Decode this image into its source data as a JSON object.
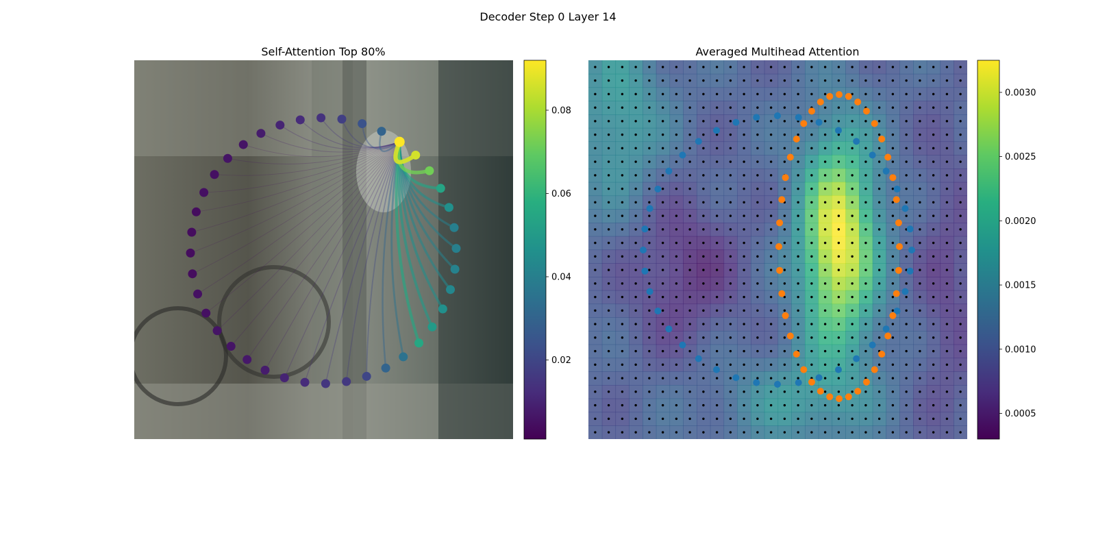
{
  "figure": {
    "suptitle": "Decoder Step 0 Layer 14"
  },
  "chart_data": [
    {
      "type": "scatter",
      "title": "Self-Attention Top 80%",
      "description_of_marks": "points on an ellipse with attention lines from a query point; color = attention weight",
      "colormap": "viridis",
      "colorbar": {
        "range": [
          0.001,
          0.092
        ],
        "ticks": [
          0.02,
          0.04,
          0.06,
          0.08
        ],
        "tick_labels": [
          "0.02",
          "0.04",
          "0.06",
          "0.08"
        ]
      },
      "query_index": 0,
      "series": [
        {
          "points_count": 40,
          "weights": [
            0.092,
            0.086,
            0.072,
            0.054,
            0.046,
            0.04,
            0.04,
            0.041,
            0.043,
            0.046,
            0.05,
            0.055,
            0.035,
            0.03,
            0.02,
            0.016,
            0.015,
            0.012,
            0.01,
            0.008,
            0.007,
            0.006,
            0.006,
            0.005,
            0.005,
            0.004,
            0.004,
            0.004,
            0.004,
            0.005,
            0.005,
            0.006,
            0.006,
            0.008,
            0.01,
            0.012,
            0.014,
            0.018,
            0.024,
            0.03
          ]
        }
      ]
    },
    {
      "type": "heatmap",
      "title": "Averaged Multihead Attention",
      "colormap": "viridis",
      "grid": "28x28",
      "colorbar": {
        "range": [
          0.0003,
          0.00325
        ],
        "ticks": [
          0.0005,
          0.001,
          0.0015,
          0.002,
          0.0025,
          0.003
        ],
        "tick_labels": [
          "0.0005",
          "0.0010",
          "0.0015",
          "0.0020",
          "0.0025",
          "0.0030"
        ]
      },
      "overlay_series": [
        {
          "name": "",
          "color": "#1f77b4",
          "points_count": 40
        },
        {
          "name": "",
          "color": "#ff7f0e",
          "points_count": 40
        }
      ]
    }
  ],
  "colors": {
    "blue": "#1f77b4",
    "orange": "#ff7f0e",
    "grid_dots": "#000000"
  }
}
